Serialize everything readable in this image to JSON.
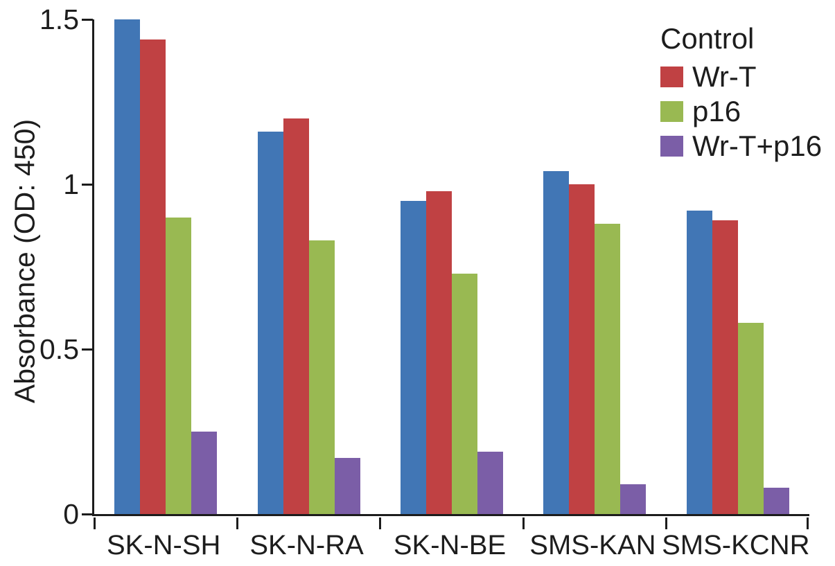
{
  "chart_data": {
    "type": "bar",
    "title": "",
    "categories": [
      "SK-N-SH",
      "SK-N-RA",
      "SK-N-BE",
      "SMS-KAN",
      "SMS-KCNR"
    ],
    "series": [
      {
        "name": "Control",
        "color": "#4176b5",
        "values": [
          1.5,
          1.16,
          0.95,
          1.04,
          0.92
        ]
      },
      {
        "name": "Wr-T",
        "color": "#c04143",
        "values": [
          1.44,
          1.2,
          0.98,
          1.0,
          0.89
        ]
      },
      {
        "name": "p16",
        "color": "#99b952",
        "values": [
          0.9,
          0.83,
          0.73,
          0.88,
          0.58
        ]
      },
      {
        "name": "Wr-T+p16",
        "color": "#7b5ea7",
        "values": [
          0.25,
          0.17,
          0.19,
          0.09,
          0.08
        ]
      }
    ],
    "xlabel": "",
    "ylabel": "Absorbance (OD: 450)",
    "ylim": [
      0,
      1.5
    ],
    "yticks": {
      "values": [
        0,
        0.5,
        1,
        1.5
      ],
      "labels": [
        "0",
        "0.5",
        "1",
        "1.5"
      ]
    },
    "grid": false,
    "axis_color": "#1c1c1c",
    "legend": {
      "position": "top-right",
      "title": "Control",
      "entries": [
        {
          "label": "Wr-T",
          "color": "#c04143"
        },
        {
          "label": "p16",
          "color": "#99b952"
        },
        {
          "label": "Wr-T+p16",
          "color": "#7b5ea7"
        }
      ]
    }
  }
}
